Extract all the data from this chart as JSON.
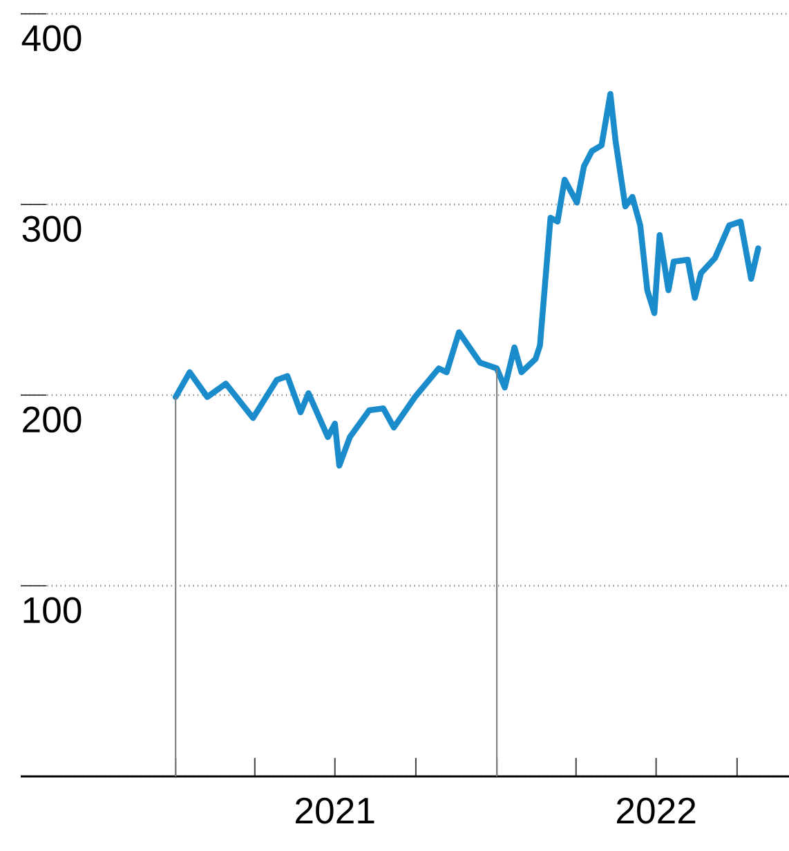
{
  "chart_data": {
    "type": "line",
    "x": [
      "2021-01-01",
      "2021-01-17",
      "2021-02-06",
      "2021-02-27",
      "2021-03-30",
      "2021-04-26",
      "2021-05-08",
      "2021-05-23",
      "2021-06-01",
      "2021-06-23",
      "2021-07-01",
      "2021-07-06",
      "2021-07-18",
      "2021-08-09",
      "2021-08-25",
      "2021-09-06",
      "2021-09-30",
      "2021-10-27",
      "2021-11-05",
      "2021-11-19",
      "2021-12-13",
      "2022-01-01",
      "2022-01-10",
      "2022-01-21",
      "2022-01-29",
      "2022-02-14",
      "2022-02-19",
      "2022-03-03",
      "2022-03-11",
      "2022-03-19",
      "2022-04-02",
      "2022-04-10",
      "2022-04-19",
      "2022-04-30",
      "2022-05-10",
      "2022-05-16",
      "2022-05-27",
      "2022-06-04",
      "2022-06-13",
      "2022-06-21",
      "2022-06-29",
      "2022-07-05",
      "2022-07-15",
      "2022-07-21",
      "2022-08-06",
      "2022-08-14",
      "2022-08-21",
      "2022-09-06",
      "2022-09-22",
      "2022-10-05",
      "2022-10-17",
      "2022-10-25"
    ],
    "series": [
      {
        "color": "#1a8ccc",
        "values": [
          199,
          212,
          199,
          206,
          188,
          208,
          210,
          191,
          201,
          178,
          185,
          163,
          178,
          192,
          193,
          183,
          199,
          214,
          212,
          233,
          217,
          214,
          204,
          225,
          212,
          219,
          226,
          293,
          291,
          313,
          301,
          320,
          328,
          331,
          358,
          333,
          299,
          304,
          289,
          255,
          243,
          284,
          255,
          270,
          271,
          251,
          264,
          272,
          289,
          291,
          261,
          277
        ]
      }
    ],
    "xlim": [
      "2020-07-09",
      "2022-11-29"
    ],
    "xticks": [
      {
        "value": "2021-01-01",
        "label": null
      },
      {
        "value": "2021-04-01",
        "label": null
      },
      {
        "value": "2021-07-01",
        "label": "2021"
      },
      {
        "value": "2021-10-01",
        "label": null
      },
      {
        "value": "2022-01-01",
        "label": null
      },
      {
        "value": "2022-04-01",
        "label": null
      },
      {
        "value": "2022-07-01",
        "label": "2022"
      },
      {
        "value": "2022-10-01",
        "label": null
      }
    ],
    "ylim": [
      0,
      400
    ],
    "yticks": [
      {
        "value": 0,
        "label": null
      },
      100,
      200,
      300,
      400
    ],
    "grid": "y",
    "marker": "none",
    "line_style": "solid",
    "ref_lines": [
      {
        "axis": "x",
        "value": "2021-01-01",
        "color": "#808080"
      },
      {
        "axis": "x",
        "value": "2022-01-01",
        "color": "#808080"
      }
    ]
  }
}
